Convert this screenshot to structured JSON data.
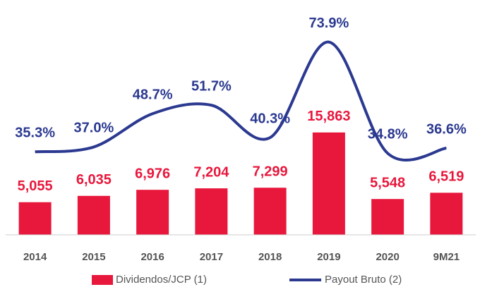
{
  "chart_data": {
    "type": "bar+line",
    "categories": [
      "2014",
      "2015",
      "2016",
      "2017",
      "2018",
      "2019",
      "2020",
      "9M21"
    ],
    "series": [
      {
        "name": "Dividendos/JCP (1)",
        "type": "bar",
        "color": "#e8173c",
        "values": [
          5055,
          6035,
          6976,
          7204,
          7299,
          15863,
          5548,
          6519
        ],
        "value_labels": [
          "5,055",
          "6,035",
          "6,976",
          "7,204",
          "7,299",
          "15,863",
          "5,548",
          "6,519"
        ]
      },
      {
        "name": "Payout Bruto (2)",
        "type": "line",
        "axis": "y2",
        "color": "#2b3990",
        "values": [
          35.3,
          37.0,
          48.7,
          51.7,
          40.3,
          73.9,
          34.8,
          36.6
        ],
        "value_labels": [
          "35.3%",
          "37.0%",
          "48.7%",
          "51.7%",
          "40.3%",
          "73.9%",
          "34.8%",
          "36.6%"
        ]
      }
    ],
    "ylim": [
      0,
      20000
    ],
    "y2lim": [
      20,
      80
    ],
    "legend": "bottom"
  }
}
